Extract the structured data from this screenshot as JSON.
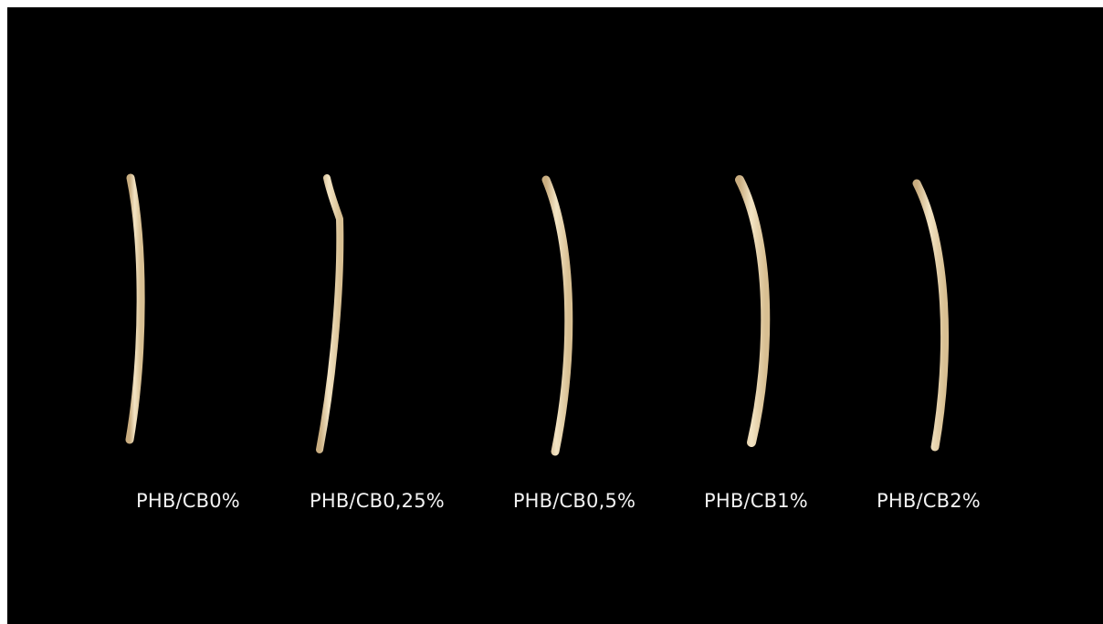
{
  "samples": [
    {
      "label": "PHB/CB0%"
    },
    {
      "label": "PHB/CB0,25%"
    },
    {
      "label": "PHB/CB0,5%"
    },
    {
      "label": "PHB/CB1%"
    },
    {
      "label": "PHB/CB2%"
    }
  ],
  "colors": {
    "background": "#000000",
    "filament": "#e8d2a8",
    "filament_highlight": "#f6ead0",
    "label_text": "#f2f2f2"
  }
}
